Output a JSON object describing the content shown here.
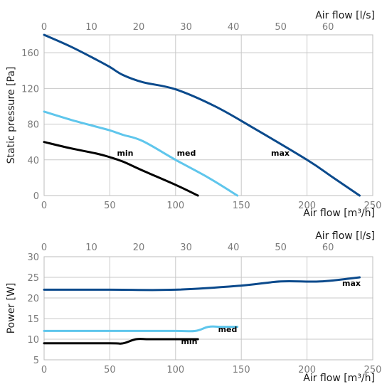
{
  "chart_data": [
    {
      "type": "line",
      "ylabel": "Static pressure [Pa]",
      "xlabel_bottom": "Air flow [m³/h]",
      "xlabel_top": "Air flow [l/s]",
      "x_bottom_ticks": [
        "0",
        "50",
        "100",
        "150",
        "200",
        "250"
      ],
      "x_top_ticks": [
        "0",
        "10",
        "20",
        "30",
        "40",
        "50",
        "60"
      ],
      "y_ticks": [
        "0",
        "40",
        "80",
        "120",
        "160"
      ],
      "xlim": [
        0,
        250
      ],
      "ylim": [
        0,
        180
      ],
      "grid": true,
      "series": [
        {
          "name": "max",
          "color": "#0b4a8c",
          "x": [
            0,
            20,
            40,
            50,
            60,
            75,
            100,
            130,
            160,
            200,
            220,
            240
          ],
          "y": [
            180,
            167,
            152,
            144,
            135,
            127,
            119,
            100,
            75,
            40,
            20,
            0
          ]
        },
        {
          "name": "med",
          "color": "#5fc6ec",
          "x": [
            0,
            20,
            40,
            50,
            60,
            75,
            100,
            125,
            147
          ],
          "y": [
            94,
            85,
            77,
            73,
            68,
            61,
            40,
            20,
            0
          ]
        },
        {
          "name": "min",
          "color": "#000000",
          "x": [
            0,
            20,
            40,
            50,
            60,
            75,
            100,
            117
          ],
          "y": [
            60,
            53,
            47,
            43,
            38,
            28,
            12,
            0
          ]
        }
      ]
    },
    {
      "type": "line",
      "ylabel": "Power [W]",
      "xlabel_bottom": "Air flow [m³/h]",
      "xlabel_top": "Air flow [l/s]",
      "x_bottom_ticks": [
        "0",
        "50",
        "100",
        "150",
        "200",
        "250"
      ],
      "x_top_ticks": [
        "0",
        "10",
        "20",
        "30",
        "40",
        "50",
        "60"
      ],
      "y_ticks": [
        "5",
        "10",
        "15",
        "20",
        "25",
        "30"
      ],
      "xlim": [
        0,
        250
      ],
      "ylim": [
        5,
        30
      ],
      "grid": true,
      "series": [
        {
          "name": "max",
          "color": "#0b4a8c",
          "x": [
            0,
            50,
            100,
            150,
            180,
            210,
            240
          ],
          "y": [
            22,
            22,
            22,
            23,
            24,
            24,
            25
          ]
        },
        {
          "name": "med",
          "color": "#5fc6ec",
          "x": [
            0,
            50,
            100,
            115,
            125,
            135,
            147
          ],
          "y": [
            12,
            12,
            12,
            12,
            13,
            13,
            13
          ]
        },
        {
          "name": "min",
          "color": "#000000",
          "x": [
            0,
            50,
            60,
            70,
            80,
            100,
            117
          ],
          "y": [
            9,
            9,
            9,
            10,
            10,
            10,
            10
          ]
        }
      ]
    }
  ]
}
